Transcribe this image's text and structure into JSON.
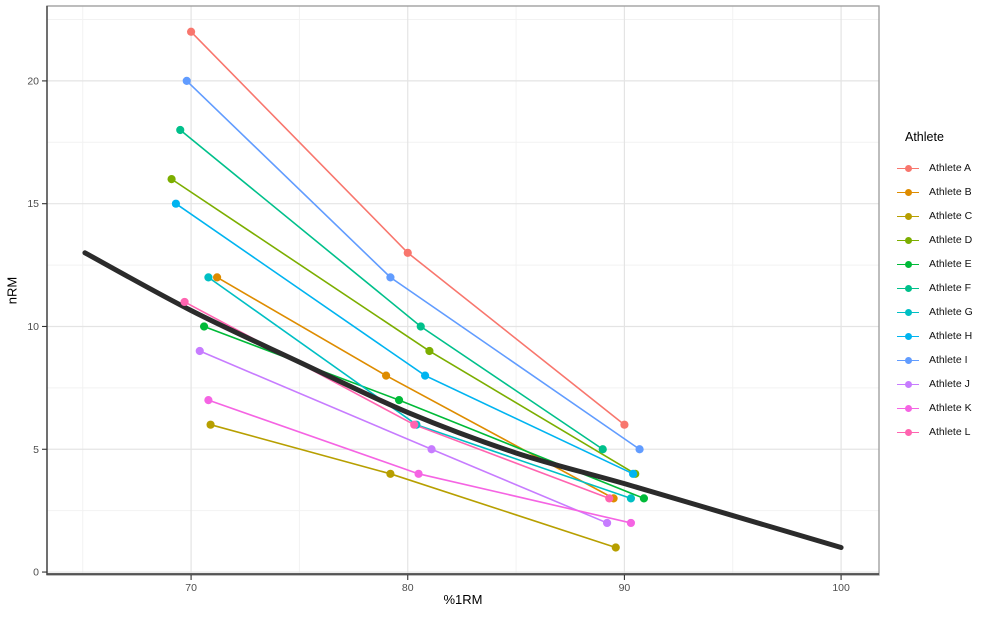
{
  "chart_data": {
    "type": "line",
    "title": "",
    "xlabel": "%1RM",
    "ylabel": "nRM",
    "xlim": [
      63.35,
      101.75
    ],
    "ylim": [
      -0.12,
      23.05
    ],
    "x_ticks": [
      70,
      80,
      90,
      100
    ],
    "y_ticks": [
      0,
      5,
      10,
      15,
      20
    ],
    "x_minor_ticks": [
      65,
      75,
      85,
      95
    ],
    "y_minor_ticks": [
      2.5,
      7.5,
      12.5,
      17.5,
      22.5
    ],
    "grid": "on",
    "legend_position": "right",
    "legend_title": "Athlete",
    "series": [
      {
        "name": "Athlete A",
        "color": "#F8766D",
        "points": [
          [
            70.0,
            22
          ],
          [
            80.0,
            13
          ],
          [
            90.0,
            6
          ]
        ]
      },
      {
        "name": "Athlete B",
        "color": "#DE8C00",
        "points": [
          [
            71.2,
            12
          ],
          [
            79.0,
            8
          ],
          [
            89.5,
            3
          ]
        ]
      },
      {
        "name": "Athlete C",
        "color": "#B79F00",
        "points": [
          [
            70.9,
            6
          ],
          [
            79.2,
            4
          ],
          [
            89.6,
            1
          ]
        ]
      },
      {
        "name": "Athlete D",
        "color": "#7CAE00",
        "points": [
          [
            69.1,
            16
          ],
          [
            81.0,
            9
          ],
          [
            90.5,
            4
          ]
        ]
      },
      {
        "name": "Athlete E",
        "color": "#00BA38",
        "points": [
          [
            70.6,
            10
          ],
          [
            79.6,
            7
          ],
          [
            90.9,
            3
          ]
        ]
      },
      {
        "name": "Athlete F",
        "color": "#00C08B",
        "points": [
          [
            69.5,
            18
          ],
          [
            80.6,
            10
          ],
          [
            89.0,
            5
          ]
        ]
      },
      {
        "name": "Athlete G",
        "color": "#00BFC4",
        "points": [
          [
            70.8,
            12
          ],
          [
            80.4,
            6
          ],
          [
            90.3,
            3
          ]
        ]
      },
      {
        "name": "Athlete H",
        "color": "#00B4F0",
        "points": [
          [
            69.3,
            15
          ],
          [
            80.8,
            8
          ],
          [
            90.4,
            4
          ]
        ]
      },
      {
        "name": "Athlete I",
        "color": "#619CFF",
        "points": [
          [
            69.8,
            20
          ],
          [
            79.2,
            12
          ],
          [
            90.7,
            5
          ]
        ]
      },
      {
        "name": "Athlete J",
        "color": "#C77CFF",
        "points": [
          [
            70.4,
            9
          ],
          [
            81.1,
            5
          ],
          [
            89.2,
            2
          ]
        ]
      },
      {
        "name": "Athlete K",
        "color": "#F564E3",
        "points": [
          [
            70.8,
            7
          ],
          [
            80.5,
            4
          ],
          [
            90.3,
            2
          ]
        ]
      },
      {
        "name": "Athlete L",
        "color": "#FF64B0",
        "points": [
          [
            69.7,
            11
          ],
          [
            80.3,
            6
          ],
          [
            89.3,
            3
          ]
        ]
      }
    ],
    "reference_curve": {
      "name": "rep-max-prediction-curve",
      "color": "#2B2B2B",
      "stroke_width": 5,
      "points": [
        [
          65.1,
          13.0
        ],
        [
          70,
          10.65
        ],
        [
          75,
          8.55
        ],
        [
          80,
          6.5
        ],
        [
          85,
          4.85
        ],
        [
          90,
          3.6
        ],
        [
          95,
          2.3
        ],
        [
          100,
          1.0
        ]
      ]
    },
    "style": {
      "panel_background": "#FFFFFF",
      "grid_major_color": "#E4E4E4",
      "grid_minor_color": "#F2F2F2",
      "panel_border_color": "#999999",
      "axis_line_color": "#4A4A4A",
      "tick_color": "#333333",
      "tick_label_color": "#4D4D4D"
    }
  }
}
